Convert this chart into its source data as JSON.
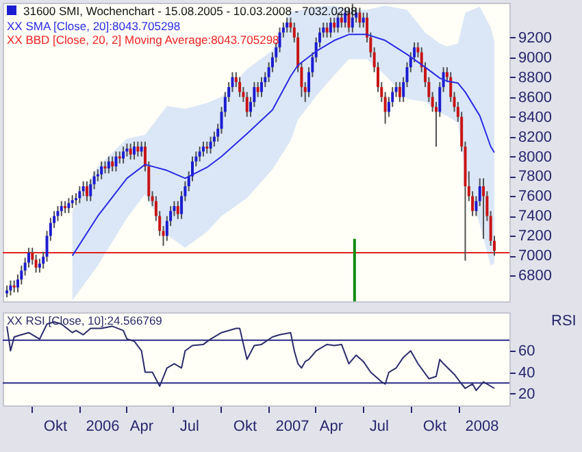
{
  "chart_data": [
    {
      "type": "candlestick",
      "title": "31600 SMI, Wochenchart - 15.08.2005 - 10.03.2008 - 7032.0298",
      "annotations": [
        "XX BBD [Close, 20, 2] Moving Average:8043.705298"
      ],
      "x": [
        "2005-08-15",
        "2005-08-22",
        "2005-08-29",
        "2005-09-05",
        "2005-09-12",
        "2005-09-19",
        "2005-09-26",
        "2005-10-03",
        "2005-10-10",
        "2005-10-17",
        "2005-10-24",
        "2005-10-31",
        "2005-11-07",
        "2005-11-14",
        "2005-11-21",
        "2005-11-28",
        "2005-12-05",
        "2005-12-12",
        "2005-12-19",
        "2005-12-26",
        "2006-01-02",
        "2006-01-09",
        "2006-01-16",
        "2006-01-23",
        "2006-01-30",
        "2006-02-06",
        "2006-02-13",
        "2006-02-20",
        "2006-02-27",
        "2006-03-06",
        "2006-03-13",
        "2006-03-20",
        "2006-03-27",
        "2006-04-03",
        "2006-04-10",
        "2006-04-17",
        "2006-04-24",
        "2006-05-01",
        "2006-05-08",
        "2006-05-15",
        "2006-05-22",
        "2006-05-29",
        "2006-06-05",
        "2006-06-12",
        "2006-06-19",
        "2006-06-26",
        "2006-07-03",
        "2006-07-10",
        "2006-07-17",
        "2006-07-24",
        "2006-07-31",
        "2006-08-07",
        "2006-08-14",
        "2006-08-21",
        "2006-08-28",
        "2006-09-04",
        "2006-09-11",
        "2006-09-18",
        "2006-09-25",
        "2006-10-02",
        "2006-10-09",
        "2006-10-16",
        "2006-10-23",
        "2006-10-30",
        "2006-11-06",
        "2006-11-13",
        "2006-11-20",
        "2006-11-27",
        "2006-12-04",
        "2006-12-11",
        "2006-12-18",
        "2006-12-25",
        "2007-01-01",
        "2007-01-08",
        "2007-01-15",
        "2007-01-22",
        "2007-01-29",
        "2007-02-05",
        "2007-02-12",
        "2007-02-19",
        "2007-02-26",
        "2007-03-05",
        "2007-03-12",
        "2007-03-19",
        "2007-03-26",
        "2007-04-02",
        "2007-04-09",
        "2007-04-16",
        "2007-04-23",
        "2007-04-30",
        "2007-05-07",
        "2007-05-14",
        "2007-05-21",
        "2007-05-28",
        "2007-06-04",
        "2007-06-11",
        "2007-06-18",
        "2007-06-25",
        "2007-07-02",
        "2007-07-09",
        "2007-07-16",
        "2007-07-23",
        "2007-07-30",
        "2007-08-06",
        "2007-08-13",
        "2007-08-20",
        "2007-08-27",
        "2007-09-03",
        "2007-09-10",
        "2007-09-17",
        "2007-09-24",
        "2007-10-01",
        "2007-10-08",
        "2007-10-15",
        "2007-10-22",
        "2007-10-29",
        "2007-11-05",
        "2007-11-12",
        "2007-11-19",
        "2007-11-26",
        "2007-12-03",
        "2007-12-10",
        "2007-12-17",
        "2007-12-24",
        "2007-12-31",
        "2008-01-07",
        "2008-01-14",
        "2008-01-21",
        "2008-01-28",
        "2008-02-04",
        "2008-02-11",
        "2008-02-18",
        "2008-02-25",
        "2008-03-03",
        "2008-03-10"
      ],
      "series": [
        {
          "ohlc": [
            [
              6620,
              6700,
              6580,
              6650
            ],
            [
              6650,
              6750,
              6600,
              6700
            ],
            [
              6700,
              6750,
              6630,
              6680
            ],
            [
              6680,
              6810,
              6630,
              6760
            ],
            [
              6760,
              6900,
              6710,
              6850
            ],
            [
              6850,
              6980,
              6800,
              6930
            ],
            [
              6930,
              7080,
              6880,
              7030
            ],
            [
              7030,
              7080,
              6910,
              6960
            ],
            [
              6960,
              7010,
              6830,
              6880
            ],
            [
              6880,
              6970,
              6830,
              6920
            ],
            [
              6920,
              7040,
              6870,
              6990
            ],
            [
              6990,
              7250,
              6940,
              7200
            ],
            [
              7200,
              7380,
              7150,
              7330
            ],
            [
              7330,
              7450,
              7280,
              7400
            ],
            [
              7400,
              7500,
              7350,
              7450
            ],
            [
              7450,
              7550,
              7400,
              7500
            ],
            [
              7500,
              7550,
              7430,
              7480
            ],
            [
              7480,
              7580,
              7430,
              7530
            ],
            [
              7530,
              7610,
              7480,
              7560
            ],
            [
              7560,
              7630,
              7510,
              7580
            ],
            [
              7580,
              7700,
              7530,
              7650
            ],
            [
              7650,
              7750,
              7600,
              7700
            ],
            [
              7700,
              7750,
              7550,
              7600
            ],
            [
              7600,
              7770,
              7550,
              7720
            ],
            [
              7720,
              7850,
              7670,
              7800
            ],
            [
              7800,
              7870,
              7750,
              7820
            ],
            [
              7820,
              7950,
              7770,
              7900
            ],
            [
              7900,
              7950,
              7830,
              7880
            ],
            [
              7880,
              8000,
              7830,
              7950
            ],
            [
              7950,
              8000,
              7850,
              7900
            ],
            [
              7900,
              8050,
              7850,
              8000
            ],
            [
              8000,
              8050,
              7930,
              7980
            ],
            [
              7980,
              8100,
              7930,
              8050
            ],
            [
              8050,
              8130,
              8000,
              8080
            ],
            [
              8080,
              8130,
              7970,
              8020
            ],
            [
              8020,
              8150,
              7970,
              8100
            ],
            [
              8100,
              8150,
              8000,
              8050
            ],
            [
              8050,
              8150,
              8000,
              8100
            ],
            [
              8100,
              8150,
              7850,
              7900
            ],
            [
              7900,
              7950,
              7550,
              7600
            ],
            [
              7600,
              7650,
              7500,
              7550
            ],
            [
              7550,
              7600,
              7350,
              7400
            ],
            [
              7400,
              7450,
              7200,
              7250
            ],
            [
              7250,
              7300,
              7100,
              7200
            ],
            [
              7200,
              7400,
              7150,
              7350
            ],
            [
              7350,
              7500,
              7300,
              7450
            ],
            [
              7450,
              7550,
              7400,
              7500
            ],
            [
              7500,
              7550,
              7370,
              7420
            ],
            [
              7420,
              7650,
              7370,
              7600
            ],
            [
              7600,
              7750,
              7550,
              7700
            ],
            [
              7700,
              7850,
              7650,
              7800
            ],
            [
              7800,
              8000,
              7750,
              7950
            ],
            [
              7950,
              8050,
              7900,
              8000
            ],
            [
              8000,
              8100,
              7950,
              8050
            ],
            [
              8050,
              8150,
              8000,
              8100
            ],
            [
              8100,
              8150,
              8030,
              8080
            ],
            [
              8080,
              8200,
              8030,
              8150
            ],
            [
              8150,
              8250,
              8100,
              8200
            ],
            [
              8200,
              8330,
              8150,
              8280
            ],
            [
              8280,
              8500,
              8230,
              8450
            ],
            [
              8450,
              8650,
              8400,
              8600
            ],
            [
              8600,
              8750,
              8550,
              8700
            ],
            [
              8700,
              8850,
              8650,
              8800
            ],
            [
              8800,
              8850,
              8700,
              8750
            ],
            [
              8750,
              8800,
              8600,
              8650
            ],
            [
              8650,
              8700,
              8550,
              8600
            ],
            [
              8600,
              8650,
              8400,
              8450
            ],
            [
              8450,
              8600,
              8400,
              8550
            ],
            [
              8550,
              8750,
              8500,
              8700
            ],
            [
              8700,
              8750,
              8600,
              8650
            ],
            [
              8650,
              8800,
              8600,
              8750
            ],
            [
              8750,
              8850,
              8700,
              8800
            ],
            [
              8800,
              8950,
              8750,
              8900
            ],
            [
              8900,
              9050,
              8850,
              9000
            ],
            [
              9000,
              9150,
              8950,
              9100
            ],
            [
              9100,
              9300,
              9050,
              9250
            ],
            [
              9250,
              9350,
              9200,
              9300
            ],
            [
              9300,
              9400,
              9250,
              9350
            ],
            [
              9350,
              9400,
              9250,
              9300
            ],
            [
              9300,
              9350,
              9150,
              9200
            ],
            [
              9200,
              9250,
              8850,
              8900
            ],
            [
              8900,
              8950,
              8600,
              8700
            ],
            [
              8700,
              8750,
              8550,
              8650
            ],
            [
              8650,
              8900,
              8600,
              8850
            ],
            [
              8850,
              9050,
              8800,
              9000
            ],
            [
              9000,
              9200,
              8950,
              9150
            ],
            [
              9150,
              9300,
              9100,
              9250
            ],
            [
              9250,
              9350,
              9200,
              9300
            ],
            [
              9300,
              9350,
              9200,
              9250
            ],
            [
              9250,
              9400,
              9200,
              9350
            ],
            [
              9350,
              9400,
              9250,
              9300
            ],
            [
              9300,
              9450,
              9250,
              9400
            ],
            [
              9400,
              9450,
              9300,
              9350
            ],
            [
              9350,
              9500,
              9300,
              9450
            ],
            [
              9450,
              9500,
              9250,
              9300
            ],
            [
              9300,
              9540,
              9250,
              9400
            ],
            [
              9400,
              9500,
              9350,
              9450
            ],
            [
              9450,
              9500,
              9300,
              9350
            ],
            [
              9350,
              9450,
              9300,
              9400
            ],
            [
              9400,
              9450,
              9150,
              9200
            ],
            [
              9200,
              9250,
              9000,
              9050
            ],
            [
              9050,
              9100,
              8850,
              8900
            ],
            [
              8900,
              8950,
              8650,
              8700
            ],
            [
              8700,
              8750,
              8550,
              8600
            ],
            [
              8600,
              8650,
              8330,
              8450
            ],
            [
              8450,
              8600,
              8400,
              8550
            ],
            [
              8550,
              8700,
              8500,
              8650
            ],
            [
              8650,
              8750,
              8600,
              8700
            ],
            [
              8700,
              8750,
              8550,
              8600
            ],
            [
              8600,
              8800,
              8550,
              8750
            ],
            [
              8750,
              8950,
              8700,
              8900
            ],
            [
              8900,
              9050,
              8850,
              9000
            ],
            [
              9000,
              9150,
              8950,
              9100
            ],
            [
              9100,
              9150,
              9000,
              9050
            ],
            [
              9050,
              9100,
              8850,
              8900
            ],
            [
              8900,
              8950,
              8700,
              8750
            ],
            [
              8750,
              8800,
              8550,
              8600
            ],
            [
              8600,
              8650,
              8450,
              8500
            ],
            [
              8500,
              8550,
              8100,
              8450
            ],
            [
              8450,
              8750,
              8400,
              8700
            ],
            [
              8700,
              8900,
              8650,
              8850
            ],
            [
              8850,
              8900,
              8750,
              8800
            ],
            [
              8800,
              8850,
              8550,
              8600
            ],
            [
              8600,
              8650,
              8450,
              8500
            ],
            [
              8500,
              8550,
              8350,
              8400
            ],
            [
              8400,
              8450,
              8050,
              8100
            ],
            [
              8100,
              8150,
              6950,
              7700
            ],
            [
              7700,
              7850,
              7550,
              7600
            ],
            [
              7600,
              7650,
              7400,
              7450
            ],
            [
              7450,
              7600,
              7400,
              7550
            ],
            [
              7550,
              7780,
              7500,
              7700
            ],
            [
              7700,
              7780,
              7170,
              7600
            ],
            [
              7600,
              7650,
              7350,
              7400
            ],
            [
              7400,
              7450,
              7100,
              7150
            ],
            [
              7150,
              7200,
              7000,
              7050
            ]
          ]
        },
        {
          "type": "line",
          "name": "XX SMA [Close, 20]:8043.705298",
          "color": "#2a2ae6",
          "x": [
            "2005-12-19",
            "2006-02-06",
            "2006-04-03",
            "2006-05-08",
            "2006-06-19",
            "2006-07-24",
            "2006-09-04",
            "2006-10-02",
            "2006-11-20",
            "2007-01-08",
            "2007-02-12",
            "2007-02-26",
            "2007-04-02",
            "2007-05-07",
            "2007-06-04",
            "2007-07-09",
            "2007-08-13",
            "2007-09-24",
            "2007-10-29",
            "2007-11-26",
            "2007-12-10",
            "2007-12-31",
            "2008-01-14",
            "2008-02-11",
            "2008-03-03",
            "2008-03-10"
          ],
          "values": [
            7000,
            7400,
            7780,
            7920,
            7860,
            7780,
            7890,
            8000,
            8230,
            8470,
            8810,
            8920,
            9060,
            9170,
            9230,
            9230,
            9170,
            9030,
            8900,
            8790,
            8760,
            8740,
            8650,
            8410,
            8100,
            8040
          ],
          "lower": [
            6550,
            6900,
            7380,
            7620,
            7210,
            7080,
            7240,
            7400,
            7580,
            7870,
            8160,
            8370,
            8610,
            8820,
            8980,
            8980,
            8820,
            8580,
            8550,
            8440,
            8410,
            8340,
            7850,
            7310,
            6900,
            6924
          ],
          "upper": [
            7450,
            7900,
            8180,
            8220,
            8510,
            8480,
            8540,
            8600,
            8880,
            9070,
            9460,
            9470,
            9510,
            9520,
            9480,
            9480,
            9520,
            9480,
            9250,
            9140,
            9110,
            9140,
            9450,
            9510,
            9300,
            9164
          ]
        },
        {
          "type": "bar",
          "color": "#108a10",
          "x": [
            "2007-06-15"
          ],
          "values": [
            7170
          ]
        }
      ],
      "xlim": [
        "2005-08-07",
        "2008-04-08"
      ],
      "ylim": [
        6540,
        9550
      ],
      "yticks": [
        6800,
        7000,
        7200,
        7400,
        7600,
        7800,
        8000,
        8200,
        8400,
        8600,
        8800,
        9000,
        9200
      ],
      "ref_lines": [
        {
          "axis": "y",
          "value": 7030,
          "color": "#e02020"
        }
      ],
      "tick_labels": "y"
    },
    {
      "type": "line",
      "ylabel": "RSI",
      "series": [
        {
          "name": "XX RSI [Close, 10]:24.566769",
          "color": "#2b2b6b",
          "x": [
            "2005-08-15",
            "2005-08-22",
            "2005-08-29",
            "2005-09-12",
            "2005-09-26",
            "2005-10-17",
            "2005-10-31",
            "2005-11-14",
            "2005-11-28",
            "2005-12-19",
            "2005-12-26",
            "2006-01-09",
            "2006-01-23",
            "2006-02-13",
            "2006-03-06",
            "2006-03-27",
            "2006-04-03",
            "2006-04-17",
            "2006-05-01",
            "2006-05-08",
            "2006-05-22",
            "2006-06-05",
            "2006-06-19",
            "2006-07-03",
            "2006-07-17",
            "2006-07-24",
            "2006-08-07",
            "2006-08-28",
            "2006-09-11",
            "2006-10-02",
            "2006-10-30",
            "2006-11-06",
            "2006-11-20",
            "2006-12-04",
            "2006-12-18",
            "2007-01-08",
            "2007-01-22",
            "2007-02-12",
            "2007-02-19",
            "2007-02-26",
            "2007-03-05",
            "2007-03-12",
            "2007-03-19",
            "2007-04-02",
            "2007-04-23",
            "2007-05-07",
            "2007-05-21",
            "2007-06-04",
            "2007-06-18",
            "2007-07-02",
            "2007-07-16",
            "2007-08-06",
            "2007-08-13",
            "2007-08-20",
            "2007-09-03",
            "2007-09-17",
            "2007-10-01",
            "2007-10-15",
            "2007-11-05",
            "2007-11-19",
            "2007-11-26",
            "2007-12-03",
            "2007-12-24",
            "2008-01-07",
            "2008-01-14",
            "2008-01-28",
            "2008-02-04",
            "2008-02-18",
            "2008-03-10"
          ],
          "values": [
            83,
            60,
            73,
            75,
            77,
            71,
            85,
            87,
            85,
            77,
            79,
            75,
            81,
            81,
            83,
            79,
            71,
            69,
            60,
            40,
            40,
            27,
            44,
            48,
            44,
            60,
            65,
            66,
            71,
            77,
            81,
            81,
            52,
            65,
            66,
            73,
            75,
            77,
            60,
            48,
            44,
            50,
            52,
            60,
            66,
            65,
            66,
            48,
            56,
            50,
            40,
            31,
            29,
            40,
            44,
            54,
            60,
            48,
            34,
            36,
            52,
            48,
            38,
            29,
            25,
            29,
            23,
            31,
            25
          ]
        }
      ],
      "xlim": [
        "2005-08-07",
        "2008-04-08"
      ],
      "xticks": [
        {
          "value": "2005-10-01",
          "label": null
        },
        {
          "value": "2005-11-15",
          "label": "Okt"
        },
        {
          "value": "2006-01-01",
          "label": null
        },
        {
          "value": "2006-02-14",
          "label": "2006"
        },
        {
          "value": "2006-04-01",
          "label": null
        },
        {
          "value": "2006-04-30",
          "label": "Apr"
        },
        {
          "value": "2006-07-01",
          "label": null
        },
        {
          "value": "2006-07-31",
          "label": "Jul"
        },
        {
          "value": "2006-10-01",
          "label": null
        },
        {
          "value": "2006-11-15",
          "label": "Okt"
        },
        {
          "value": "2007-01-01",
          "label": null
        },
        {
          "value": "2007-02-14",
          "label": "2007"
        },
        {
          "value": "2007-04-01",
          "label": null
        },
        {
          "value": "2007-04-30",
          "label": "Apr"
        },
        {
          "value": "2007-07-01",
          "label": null
        },
        {
          "value": "2007-07-31",
          "label": "Jul"
        },
        {
          "value": "2007-10-01",
          "label": null
        },
        {
          "value": "2007-11-15",
          "label": "Okt"
        },
        {
          "value": "2008-01-01",
          "label": null
        },
        {
          "value": "2008-02-14",
          "label": "2008"
        }
      ],
      "ylim": [
        9,
        96
      ],
      "yticks": [
        20,
        40,
        60
      ],
      "ref_lines": [
        {
          "axis": "y",
          "value": 70,
          "color": "#2a2a8a"
        },
        {
          "axis": "y",
          "value": 30,
          "color": "#2a2a8a"
        }
      ]
    }
  ]
}
